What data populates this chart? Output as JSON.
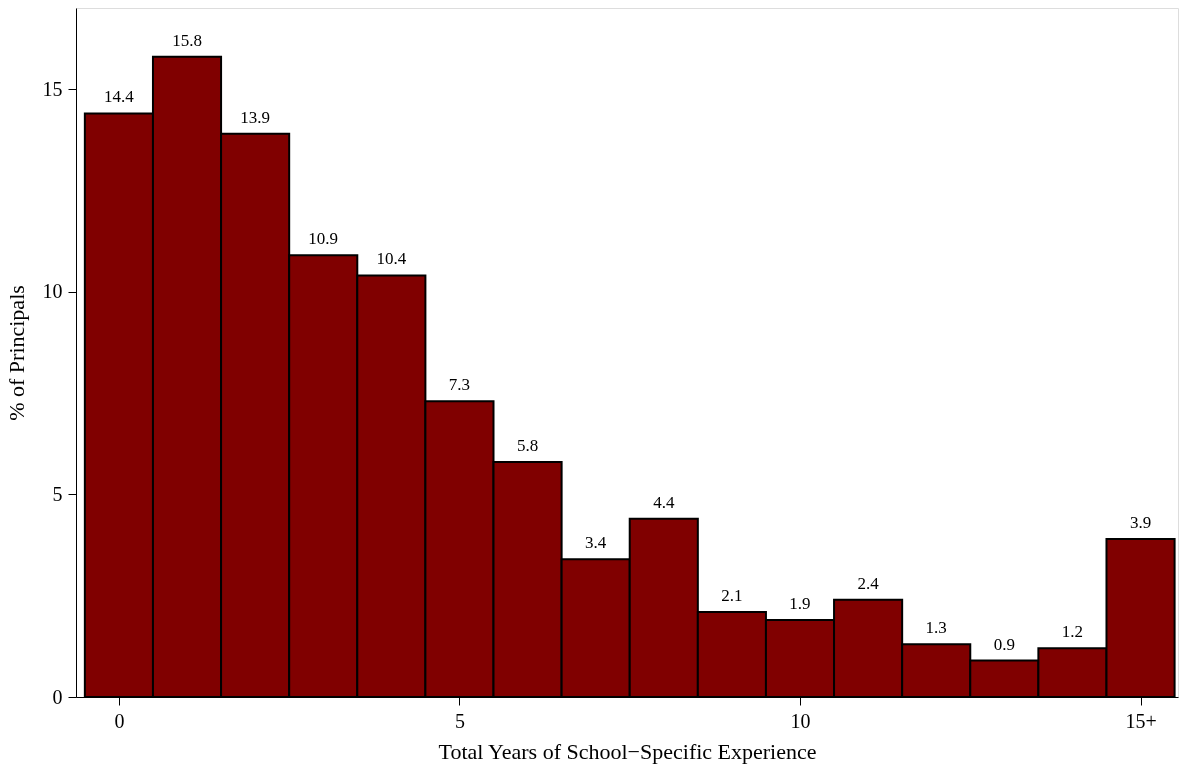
{
  "chart_data": {
    "type": "histogram",
    "xlabel": "Total Years of School−Specific Experience",
    "ylabel": "% of Principals",
    "bins": [
      -0.5,
      0.5,
      1.5,
      2.5,
      3.5,
      4.5,
      5.5,
      6.5,
      7.5,
      8.5,
      9.5,
      10.5,
      11.5,
      12.5,
      13.5,
      14.5,
      15.5
    ],
    "values": [
      14.4,
      15.8,
      13.9,
      10.9,
      10.4,
      7.3,
      5.8,
      3.4,
      4.4,
      2.1,
      1.9,
      2.4,
      1.3,
      0.9,
      1.2,
      3.9
    ],
    "color": "#800000",
    "xlim": [
      -0.63,
      15.55
    ],
    "ylim": [
      0,
      17
    ],
    "xticks": [
      0,
      5,
      10,
      {
        "value": 15,
        "label": "15+"
      }
    ],
    "yticks": [
      0,
      5,
      10,
      15
    ],
    "data_labels": true,
    "grid": false,
    "legend": false
  }
}
